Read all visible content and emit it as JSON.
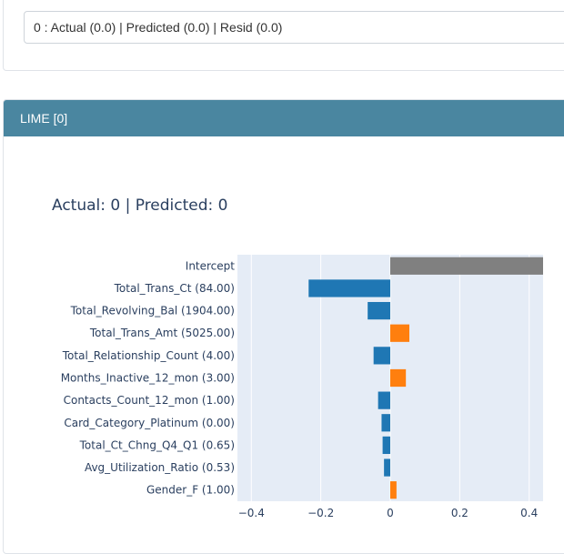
{
  "selector": {
    "value": "0 : Actual (0.0) | Predicted (0.0) | Resid (0.0)"
  },
  "panel": {
    "title": "LIME [0]"
  },
  "colors": {
    "header_bg": "#4a86a0",
    "plot_bg": "#e5ecf6",
    "negative": "#1f77b4",
    "positive": "#ff7f0e",
    "intercept": "#808080"
  },
  "chart_data": {
    "type": "bar",
    "orientation": "horizontal",
    "title": "Actual: 0 | Predicted: 0",
    "xlim": [
      -0.44,
      0.44
    ],
    "xticks": [
      -0.4,
      -0.2,
      0,
      0.2,
      0.4
    ],
    "xtick_labels": [
      "−0.4",
      "−0.2",
      "0",
      "0.2",
      "0.4"
    ],
    "grid": true,
    "legend": "none",
    "categories": [
      "Intercept",
      "Total_Trans_Ct (84.00)",
      "Total_Revolving_Bal (1904.00)",
      "Total_Trans_Amt (5025.00)",
      "Total_Relationship_Count (4.00)",
      "Months_Inactive_12_mon (3.00)",
      "Contacts_Count_12_mon (1.00)",
      "Card_Category_Platinum (0.00)",
      "Total_Ct_Chng_Q4_Q1 (0.65)",
      "Avg_Utilization_Ratio (0.53)",
      "Gender_F (1.00)"
    ],
    "values": [
      0.44,
      -0.235,
      -0.065,
      0.055,
      -0.048,
      0.045,
      -0.035,
      -0.025,
      -0.022,
      -0.018,
      0.018
    ]
  }
}
